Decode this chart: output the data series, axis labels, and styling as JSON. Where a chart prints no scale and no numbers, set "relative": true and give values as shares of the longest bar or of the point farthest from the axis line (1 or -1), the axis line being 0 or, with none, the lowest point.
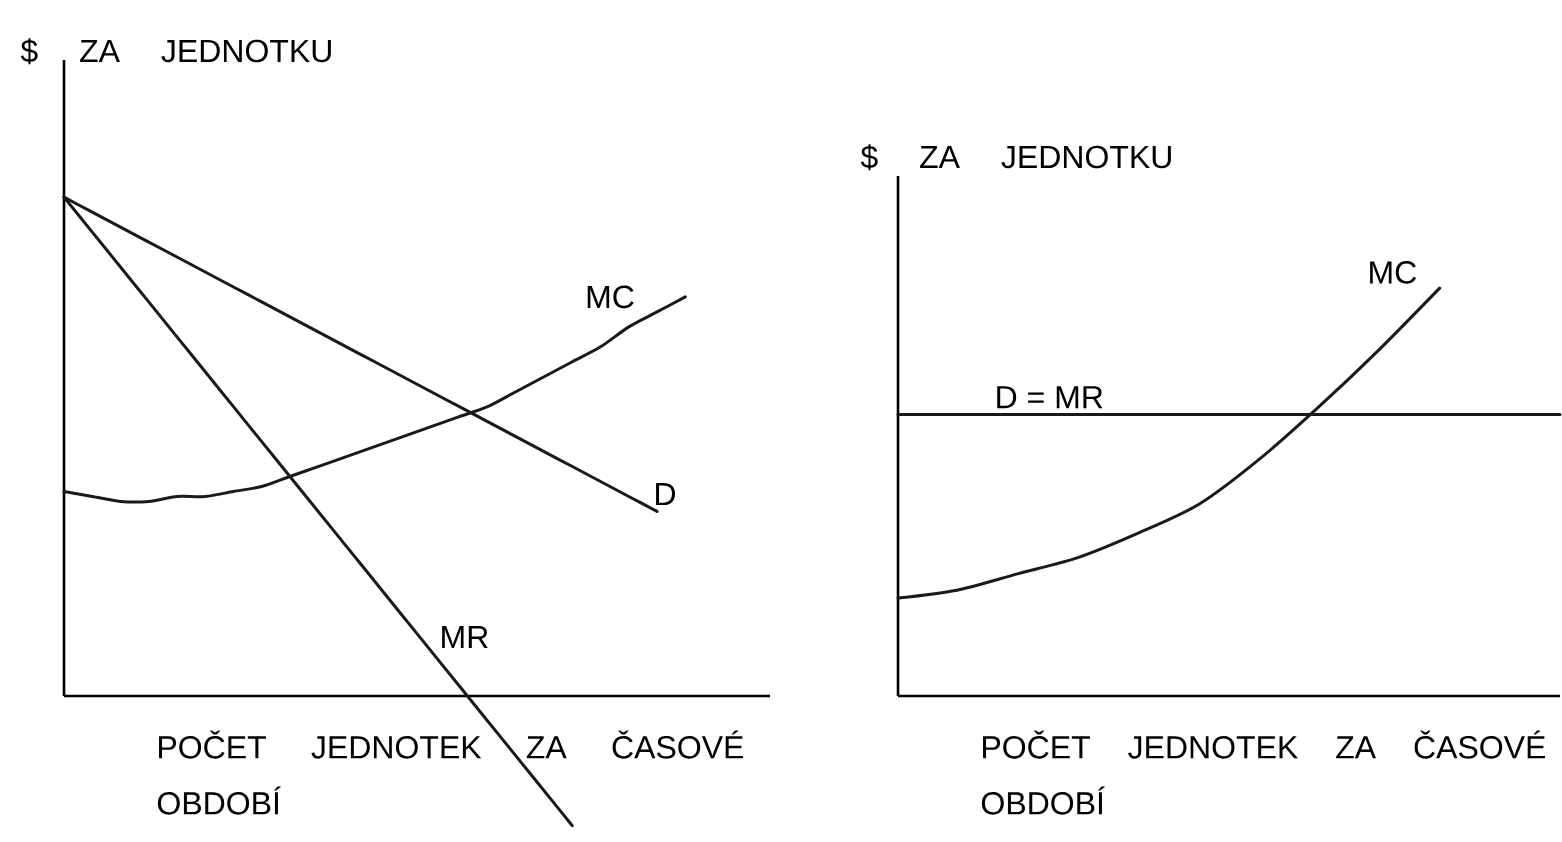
{
  "chart_data": [
    {
      "type": "line",
      "relative": true,
      "ylabel": "$ ZA JEDNOTKU",
      "xlabel": "POČET JEDNOTEK ZA ČASOVÉ OBDOBÍ",
      "categories": [
        null,
        null,
        null,
        null,
        null,
        null,
        null,
        null,
        null,
        null,
        null,
        null,
        null,
        null,
        null,
        null,
        null,
        null,
        null,
        null,
        null,
        null,
        null,
        null,
        null,
        null
      ],
      "series": [
        {
          "name": "MC",
          "color": "#1a1a1a",
          "values": [
            0.41,
            0.4,
            0.39,
            0.39,
            0.4,
            0.4,
            0.41,
            0.42,
            0.44,
            0.46,
            0.48,
            0.5,
            0.52,
            0.54,
            0.56,
            0.58,
            0.61,
            0.64,
            0.67,
            0.7,
            0.74,
            0.77,
            0.8,
            null,
            null,
            null
          ]
        },
        {
          "name": "D",
          "color": "#1a1a1a",
          "values": [
            1.0,
            0.97,
            0.94,
            0.91,
            0.88,
            0.85,
            0.82,
            0.79,
            0.76,
            0.73,
            0.7,
            0.67,
            0.64,
            0.61,
            0.58,
            0.55,
            0.52,
            0.49,
            0.46,
            0.43,
            0.4,
            0.37,
            null,
            null,
            null,
            null
          ]
        },
        {
          "name": "MR",
          "color": "#1a1a1a",
          "values": [
            1.0,
            0.93,
            0.86,
            0.79,
            0.72,
            0.65,
            0.58,
            0.51,
            0.44,
            0.37,
            0.3,
            0.23,
            0.16,
            0.09,
            0.02,
            -0.05,
            -0.12,
            -0.19,
            -0.26,
            null,
            null,
            null,
            null,
            null,
            null,
            null
          ]
        }
      ]
    },
    {
      "type": "line",
      "relative": true,
      "ylabel": "$ ZA JEDNOTKU",
      "xlabel": "POČET JEDNOTEK ZA ČASOVÉ OBDOBÍ",
      "categories": [
        null,
        null,
        null,
        null,
        null,
        null,
        null,
        null,
        null,
        null,
        null,
        null
      ],
      "series": [
        {
          "name": "MC",
          "color": "#1a1a1a",
          "values": [
            0.24,
            0.26,
            0.3,
            0.34,
            0.4,
            0.47,
            0.58,
            0.71,
            0.85,
            1.0,
            null,
            null
          ]
        },
        {
          "name": "D = MR",
          "color": "#1a1a1a",
          "values": [
            0.69,
            0.69,
            0.69,
            0.69,
            0.69,
            0.69,
            0.69,
            0.69,
            0.69,
            0.69,
            0.69,
            0.69
          ]
        }
      ]
    }
  ]
}
